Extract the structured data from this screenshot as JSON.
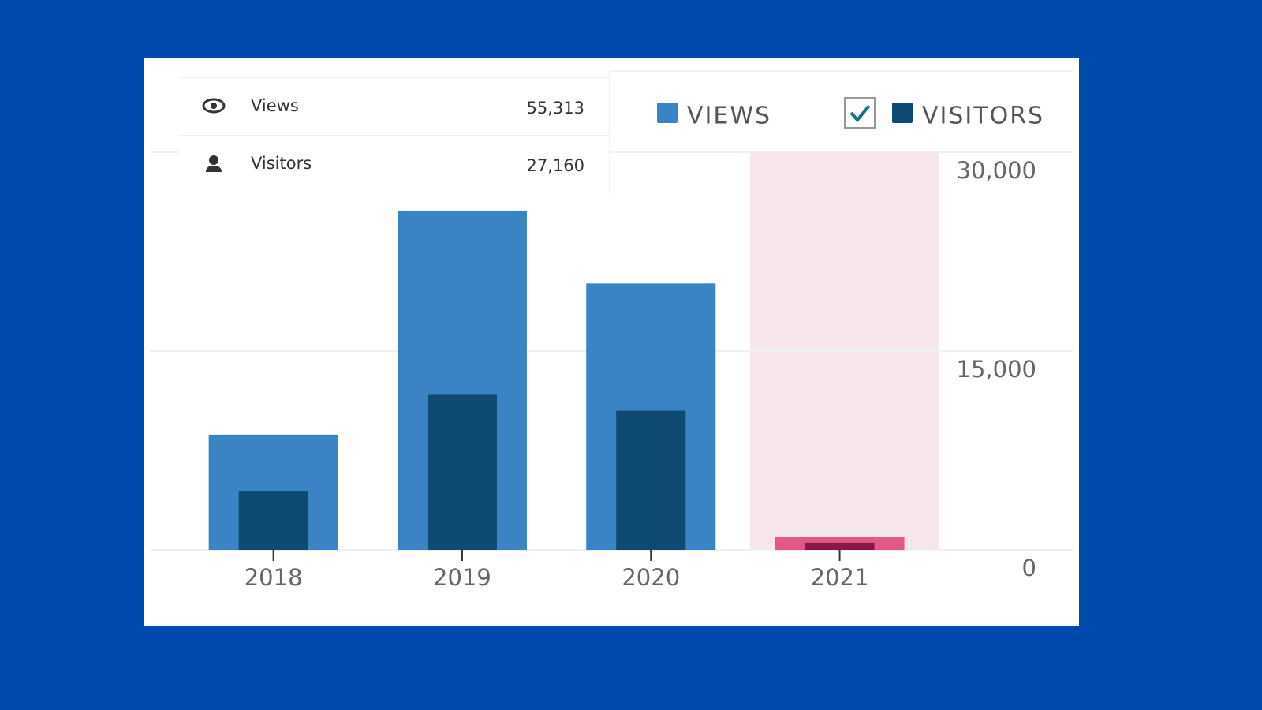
{
  "summary": [
    {
      "label": "Views",
      "value": "55,313"
    },
    {
      "label": "Visitors",
      "value": "27,160"
    }
  ],
  "chart_data": {
    "type": "bar",
    "categories": [
      "2018",
      "2019",
      "2020",
      "2021"
    ],
    "series": [
      {
        "name": "VIEWS",
        "color": "#3a84c5",
        "values": [
          8700,
          25600,
          20100,
          950
        ]
      },
      {
        "name": "VISITORS",
        "color": "#0e4a72",
        "values": [
          4400,
          11700,
          10500,
          540
        ],
        "checked": true
      }
    ],
    "ylim": [
      0,
      30000
    ],
    "yticks": [
      0,
      {
        "value": 15000,
        "label": "15,000"
      },
      {
        "value": 30000,
        "label": "30,000"
      }
    ],
    "grid": true,
    "highlight": {
      "category": "2021",
      "background": "#f7e6ec",
      "colors": [
        "#e2588b",
        "#8a1747"
      ]
    }
  }
}
